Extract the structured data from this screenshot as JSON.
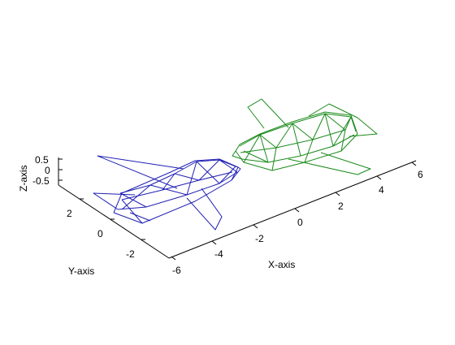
{
  "chart_data": {
    "type": "wireframe-3d",
    "title": "",
    "xlabel": "X-axis",
    "ylabel": "Y-axis",
    "zlabel": "Z-axis",
    "x_ticks": [
      "-6",
      "-4",
      "-2",
      "0",
      "2",
      "4",
      "6"
    ],
    "y_ticks": [
      "-2",
      "0",
      "2"
    ],
    "z_ticks": [
      "-0.5",
      "0",
      "0.5"
    ],
    "xlim": [
      -6,
      6
    ],
    "ylim": [
      -3,
      3
    ],
    "zlim": [
      -0.5,
      0.5
    ],
    "grid": false,
    "series": [
      {
        "color": "#1f1fb4"
      },
      {
        "color": "#1a8a1a"
      }
    ]
  }
}
